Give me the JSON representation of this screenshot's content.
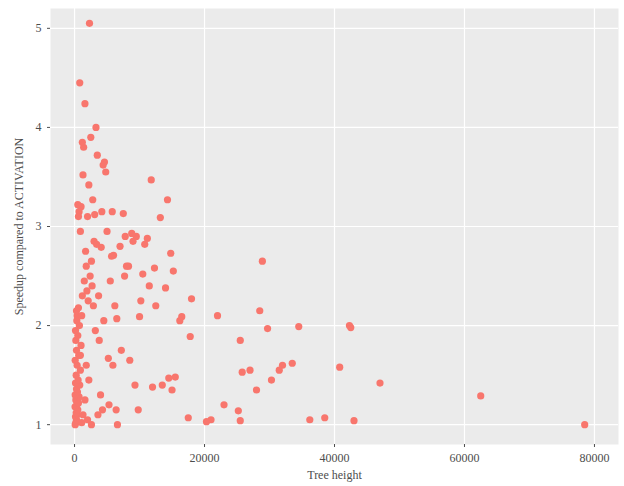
{
  "chart_data": {
    "type": "scatter",
    "x_label": "Tree height",
    "y_label": "Speedup compared to ACTIVATION",
    "color": "#F8766D",
    "grid": true,
    "xlim": [
      -3700,
      83700
    ],
    "ylim": [
      0.8,
      5.2
    ],
    "xticks": [
      0,
      20000,
      40000,
      60000,
      80000
    ],
    "yticks": [
      1,
      2,
      3,
      4,
      5
    ],
    "x": [
      78500,
      62500,
      47000,
      43000,
      42500,
      42300,
      40800,
      38500,
      36200,
      34500,
      33500,
      32000,
      31500,
      30300,
      29700,
      28900,
      28500,
      28000,
      27000,
      25800,
      25500,
      25200,
      25500,
      23000,
      22000,
      21000,
      20300,
      17500,
      18000,
      17800,
      16500,
      16200,
      15500,
      15000,
      14500,
      14000,
      14300,
      14800,
      15200,
      13200,
      13500,
      12500,
      12300,
      12000,
      11800,
      11500,
      11200,
      10800,
      10500,
      10000,
      10200,
      9800,
      9500,
      8800,
      8500,
      8000,
      7700,
      7500,
      7000,
      6500,
      6400,
      6200,
      6000,
      5800,
      5500,
      5700,
      5200,
      5000,
      4800,
      4600,
      4400,
      4200,
      4100,
      3800,
      3500,
      3300,
      3100,
      3000,
      2800,
      2700,
      2500,
      2300,
      2200,
      2000,
      2100,
      1800,
      1600,
      1400,
      1300,
      1200,
      1000,
      900,
      800,
      700,
      600,
      500,
      400,
      300,
      100,
      200,
      300,
      150,
      400,
      250,
      500,
      80,
      350,
      600,
      200,
      700,
      100,
      450,
      300,
      800,
      150,
      550,
      250,
      900,
      400,
      100,
      650,
      300,
      1000,
      200,
      500,
      150,
      750,
      350,
      1100,
      600,
      1200,
      1500,
      1700,
      1900,
      2400,
      2600,
      2900,
      3200,
      3400,
      3700,
      4000,
      4300,
      4500,
      5300,
      5900,
      6600,
      7200,
      7800,
      8300,
      9000,
      9300,
      1100,
      1300,
      2000,
      1600,
      2600,
      1800,
      900,
      3600,
      2200
    ],
    "values": [
      1.0,
      1.29,
      1.42,
      1.04,
      1.98,
      2.0,
      1.58,
      1.07,
      1.05,
      1.99,
      1.62,
      1.6,
      1.55,
      1.45,
      1.97,
      2.65,
      2.15,
      1.35,
      1.55,
      1.53,
      1.85,
      1.14,
      1.04,
      1.2,
      2.1,
      1.05,
      1.03,
      1.07,
      2.27,
      1.89,
      2.09,
      2.05,
      1.48,
      1.35,
      1.47,
      2.38,
      3.27,
      2.73,
      2.55,
      3.09,
      1.4,
      2.2,
      2.58,
      1.38,
      3.47,
      2.4,
      2.88,
      2.82,
      2.52,
      2.09,
      2.25,
      1.15,
      2.9,
      2.93,
      1.65,
      2.6,
      2.5,
      3.13,
      2.8,
      2.07,
      1.15,
      2.2,
      2.71,
      3.15,
      2.45,
      2.7,
      1.67,
      2.95,
      3.55,
      3.65,
      3.62,
      3.15,
      2.79,
      1.85,
      3.72,
      4.0,
      3.12,
      2.85,
      3.27,
      2.4,
      3.9,
      5.05,
      3.42,
      3.1,
      2.25,
      2.6,
      4.24,
      3.8,
      3.52,
      3.85,
      3.2,
      2.95,
      4.45,
      3.15,
      3.1,
      3.22,
      2.1,
      2.15,
      1.0,
      1.02,
      1.05,
      1.08,
      1.1,
      1.12,
      1.15,
      1.18,
      1.2,
      1.22,
      1.25,
      1.28,
      1.3,
      1.33,
      1.36,
      1.4,
      1.42,
      1.45,
      1.5,
      1.55,
      1.6,
      1.65,
      1.7,
      1.75,
      1.8,
      1.85,
      1.9,
      1.95,
      2.0,
      2.05,
      2.1,
      2.18,
      2.3,
      2.45,
      2.75,
      2.35,
      2.5,
      2.65,
      2.2,
      1.95,
      2.82,
      2.3,
      1.3,
      1.15,
      2.05,
      1.2,
      1.6,
      1.0,
      1.75,
      2.9,
      2.6,
      2.85,
      1.4,
      1.02,
      1.1,
      1.05,
      1.25,
      1.0,
      1.6,
      1.7,
      1.1,
      1.45
    ]
  }
}
